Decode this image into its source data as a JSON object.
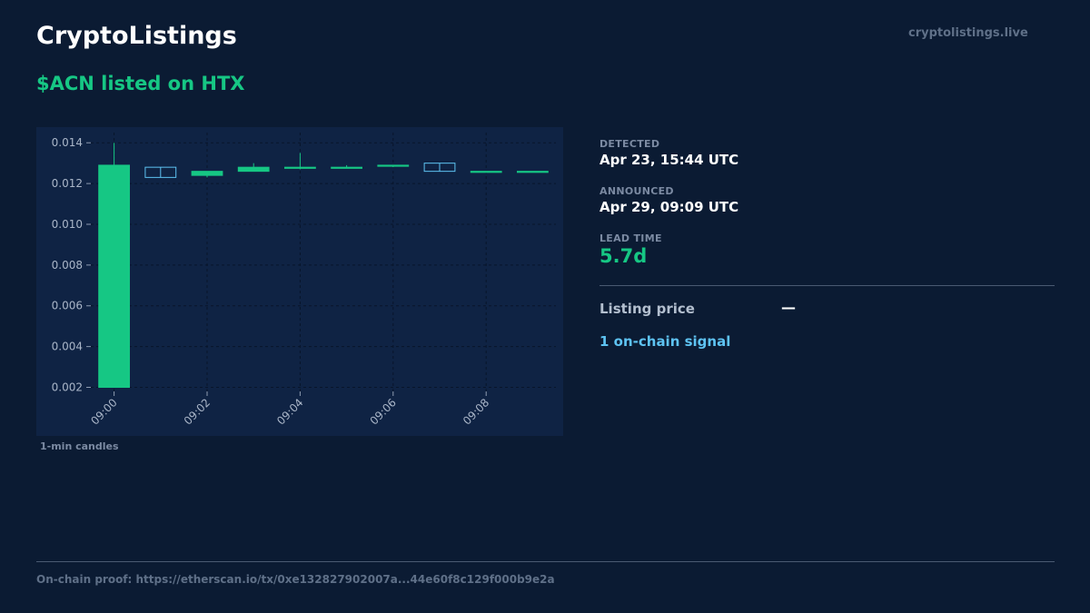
{
  "header": {
    "brand": "CryptoListings",
    "domain": "cryptolistings.live",
    "headline": "$ACN listed on HTX"
  },
  "stats": {
    "detected_label": "DETECTED",
    "detected_value": "Apr 23, 15:44 UTC",
    "announced_label": "ANNOUNCED",
    "announced_value": "Apr 29, 09:09 UTC",
    "lead_label": "LEAD TIME",
    "lead_value": "5.7d",
    "listing_price_label": "Listing price",
    "listing_price_value": "—",
    "signal_text": "1 on-chain signal"
  },
  "chart_caption": "1-min candles",
  "footer": {
    "proof": "On-chain proof: https://etherscan.io/tx/0xe132827902007a...44e60f8c129f000b9e2a"
  },
  "colors": {
    "background": "#0b1b33",
    "chart_background": "#0f2344",
    "up": "#16c784",
    "down": "#5ec3f2",
    "accent": "#16c784"
  },
  "chart_data": {
    "type": "candlestick",
    "title": "",
    "xlabel": "",
    "ylabel": "",
    "ylim": [
      0.0018,
      0.0145
    ],
    "y_ticks": [
      "0.002",
      "0.004",
      "0.006",
      "0.008",
      "0.010",
      "0.012",
      "0.014"
    ],
    "y_tick_values": [
      0.002,
      0.004,
      0.006,
      0.008,
      0.01,
      0.012,
      0.014
    ],
    "x_ticks": [
      "09:00",
      "09:02",
      "09:04",
      "09:06",
      "09:08"
    ],
    "x_tick_indices": [
      0,
      2,
      4,
      6,
      8
    ],
    "grid": true,
    "candles": [
      {
        "time": "09:00",
        "open": 0.002,
        "high": 0.014,
        "low": 0.002,
        "close": 0.0129
      },
      {
        "time": "09:01",
        "open": 0.0128,
        "high": 0.0128,
        "low": 0.0123,
        "close": 0.0123
      },
      {
        "time": "09:02",
        "open": 0.0124,
        "high": 0.0126,
        "low": 0.0123,
        "close": 0.0126
      },
      {
        "time": "09:03",
        "open": 0.0126,
        "high": 0.013,
        "low": 0.0126,
        "close": 0.0128
      },
      {
        "time": "09:04",
        "open": 0.0128,
        "high": 0.0135,
        "low": 0.0127,
        "close": 0.0128
      },
      {
        "time": "09:05",
        "open": 0.0128,
        "high": 0.0129,
        "low": 0.0128,
        "close": 0.0128
      },
      {
        "time": "09:06",
        "open": 0.0129,
        "high": 0.0129,
        "low": 0.0128,
        "close": 0.0129
      },
      {
        "time": "09:07",
        "open": 0.013,
        "high": 0.013,
        "low": 0.0126,
        "close": 0.0126
      },
      {
        "time": "09:08",
        "open": 0.0126,
        "high": 0.0126,
        "low": 0.0126,
        "close": 0.0126
      },
      {
        "time": "09:09",
        "open": 0.0126,
        "high": 0.0126,
        "low": 0.0126,
        "close": 0.0126
      }
    ]
  }
}
